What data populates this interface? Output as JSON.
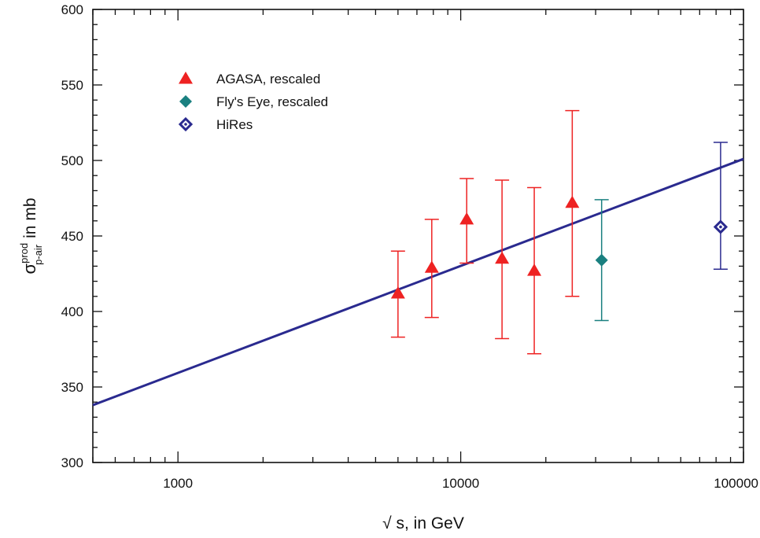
{
  "chart_data": {
    "type": "scatter",
    "x_scale": "log",
    "y_scale": "linear",
    "xlim": [
      500,
      100000
    ],
    "ylim": [
      300,
      600
    ],
    "x_tick_labels": [
      "1000",
      "10000",
      "100000"
    ],
    "y_tick_labels": [
      "300",
      "350",
      "400",
      "450",
      "500",
      "550",
      "600"
    ],
    "xlabel": "√ s, in GeV",
    "ylabel": {
      "symbol": "σ",
      "superscript": "prod",
      "subscript": "p-air",
      "unit": "in mb"
    },
    "legend": {
      "placement": "top-left",
      "entries": [
        {
          "label": "AGASA,   rescaled",
          "marker": "triangle",
          "color": "#ee2222"
        },
        {
          "label": "Fly's Eye, rescaled",
          "marker": "diamond",
          "color": "#1a8080"
        },
        {
          "label": "HiRes",
          "marker": "open-diamond",
          "color": "#2a2a8f"
        }
      ]
    },
    "series": [
      {
        "name": "AGASA,   rescaled",
        "marker": "triangle",
        "color": "#ee2222",
        "points": [
          {
            "x": 6000,
            "y": 412,
            "y_low": 383,
            "y_high": 440
          },
          {
            "x": 7900,
            "y": 429,
            "y_low": 396,
            "y_high": 461
          },
          {
            "x": 10500,
            "y": 461,
            "y_low": 432,
            "y_high": 488
          },
          {
            "x": 14000,
            "y": 435,
            "y_low": 382,
            "y_high": 487
          },
          {
            "x": 18200,
            "y": 427,
            "y_low": 372,
            "y_high": 482
          },
          {
            "x": 24800,
            "y": 472,
            "y_low": 410,
            "y_high": 533
          }
        ]
      },
      {
        "name": "Fly's Eye, rescaled",
        "marker": "diamond",
        "color": "#1a8080",
        "points": [
          {
            "x": 31500,
            "y": 434,
            "y_low": 394,
            "y_high": 474
          }
        ]
      },
      {
        "name": "HiRes",
        "marker": "open-diamond",
        "color": "#2a2a8f",
        "points": [
          {
            "x": 83000,
            "y": 456,
            "y_low": 428,
            "y_high": 512
          }
        ]
      }
    ],
    "fit_line": {
      "color": "#2a2a8f",
      "points": [
        {
          "x": 500,
          "y": 338
        },
        {
          "x": 100000,
          "y": 501
        }
      ]
    }
  }
}
